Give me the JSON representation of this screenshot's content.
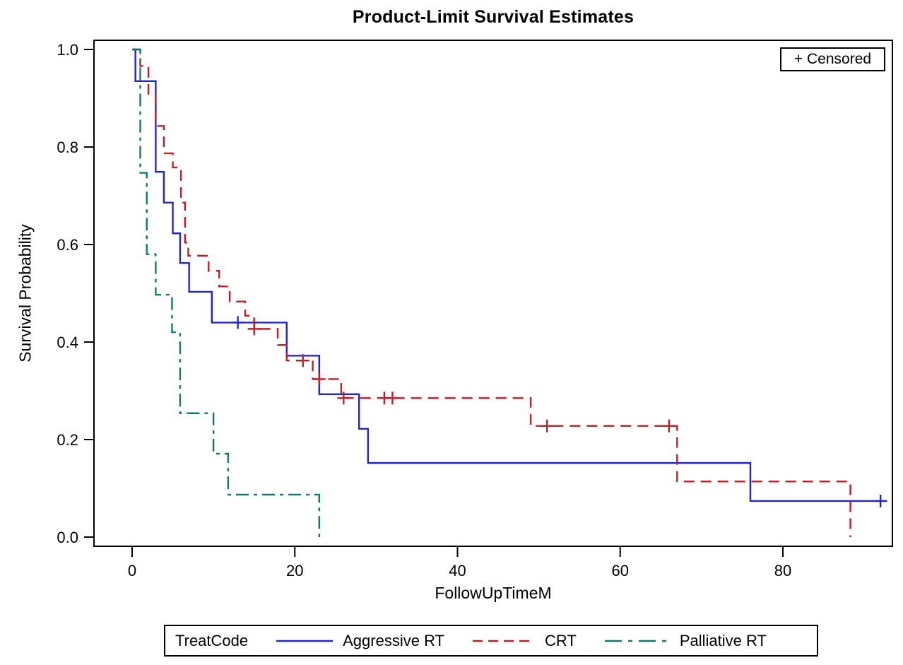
{
  "chart_data": {
    "type": "line",
    "subtype": "kaplan-meier-step-survival",
    "title": "Product-Limit Survival Estimates",
    "xlabel": "FollowUpTimeM",
    "ylabel": "Survival Probability",
    "xlim": [
      -4.7,
      93.6
    ],
    "ylim": [
      0.0,
      1.0
    ],
    "grid": false,
    "censored_label": "+ Censored",
    "legend_title": "TreatCode",
    "legend_position": "bottom",
    "x_axis": {
      "ticks": [
        {
          "value": 0,
          "label": "0"
        },
        {
          "value": 20,
          "label": "20"
        },
        {
          "value": 40,
          "label": "40"
        },
        {
          "value": 60,
          "label": "60"
        },
        {
          "value": 80,
          "label": "80"
        }
      ]
    },
    "y_axis": {
      "ticks": [
        {
          "value": 0.0,
          "label": "0.0"
        },
        {
          "value": 0.2,
          "label": "0.2"
        },
        {
          "value": 0.4,
          "label": "0.4"
        },
        {
          "value": 0.6,
          "label": "0.6"
        },
        {
          "value": 0.8,
          "label": "0.8"
        },
        {
          "value": 1.0,
          "label": "1.0"
        }
      ]
    },
    "series": [
      {
        "name": "Aggressive RT",
        "color": "#2424cd",
        "line_style": "solid",
        "dash": "",
        "legend_dash": "",
        "end_time": 92.8,
        "steps": [
          [
            0,
            1.0
          ],
          [
            0.4,
            0.935
          ],
          [
            2.9,
            0.749
          ],
          [
            3.9,
            0.686
          ],
          [
            5,
            0.623
          ],
          [
            5.9,
            0.562
          ],
          [
            7,
            0.503
          ],
          [
            9.8,
            0.44
          ],
          [
            19,
            0.372
          ],
          [
            23,
            0.293
          ],
          [
            27.9,
            0.222
          ],
          [
            29,
            0.152
          ],
          [
            76,
            0.074
          ]
        ],
        "censored": [
          [
            13,
            0.44
          ],
          [
            92,
            0.074
          ]
        ]
      },
      {
        "name": "CRT",
        "color": "#bf1e29",
        "line_style": "dash",
        "dash": "15 9",
        "legend_dash": "14 8",
        "end_time": 88.3,
        "steps": [
          [
            0,
            1.0
          ],
          [
            1,
            0.966
          ],
          [
            2,
            0.909
          ],
          [
            2.9,
            0.843
          ],
          [
            3.9,
            0.787
          ],
          [
            5,
            0.758
          ],
          [
            6,
            0.686
          ],
          [
            6.5,
            0.604
          ],
          [
            6.9,
            0.577
          ],
          [
            9.4,
            0.546
          ],
          [
            10.7,
            0.514
          ],
          [
            12,
            0.483
          ],
          [
            13.9,
            0.454
          ],
          [
            15,
            0.427
          ],
          [
            17.9,
            0.394
          ],
          [
            19,
            0.362
          ],
          [
            22.2,
            0.324
          ],
          [
            25.7,
            0.285
          ],
          [
            49,
            0.228
          ],
          [
            67,
            0.114
          ],
          [
            88.3,
            0.0
          ]
        ],
        "censored": [
          [
            15,
            0.427
          ],
          [
            21,
            0.362
          ],
          [
            23,
            0.324
          ],
          [
            26,
            0.285
          ],
          [
            31,
            0.285
          ],
          [
            32,
            0.285
          ],
          [
            51,
            0.228
          ],
          [
            66,
            0.228
          ]
        ]
      },
      {
        "name": "Palliative RT",
        "color": "#127a68",
        "line_style": "dash-dot",
        "dash": "18 7 5 7",
        "legend_dash": "24 9 6 9",
        "end_time": 23,
        "steps": [
          [
            0,
            1.0
          ],
          [
            1,
            0.747
          ],
          [
            1.8,
            0.58
          ],
          [
            2.9,
            0.497
          ],
          [
            4.9,
            0.42
          ],
          [
            5.9,
            0.254
          ],
          [
            10,
            0.171
          ],
          [
            11.8,
            0.087
          ],
          [
            23,
            0.0
          ]
        ],
        "censored": []
      }
    ]
  }
}
